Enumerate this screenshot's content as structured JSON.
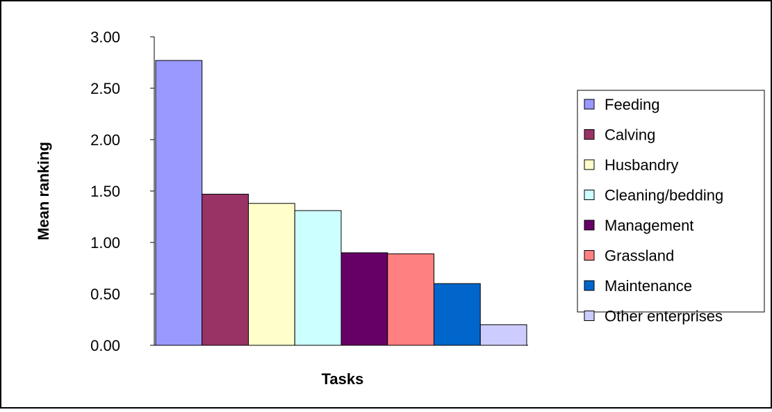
{
  "chart_data": {
    "type": "bar",
    "title": "",
    "xlabel": "Tasks",
    "ylabel": "Mean ranking",
    "ylim": [
      0,
      3
    ],
    "yticks": [
      "0.00",
      "0.50",
      "1.00",
      "1.50",
      "2.00",
      "2.50",
      "3.00"
    ],
    "legend_position": "right",
    "grid": false,
    "series": [
      {
        "name": "Feeding",
        "value": 2.77,
        "color": "#9999FF"
      },
      {
        "name": "Calving",
        "value": 1.47,
        "color": "#993366"
      },
      {
        "name": "Husbandry",
        "value": 1.38,
        "color": "#FFFFCC"
      },
      {
        "name": "Cleaning/bedding",
        "value": 1.31,
        "color": "#CCFFFF"
      },
      {
        "name": "Management",
        "value": 0.9,
        "color": "#660066"
      },
      {
        "name": "Grassland",
        "value": 0.89,
        "color": "#FF8080"
      },
      {
        "name": "Maintenance",
        "value": 0.6,
        "color": "#0066CC"
      },
      {
        "name": "Other enterprises",
        "value": 0.2,
        "color": "#CCCCFF"
      }
    ]
  }
}
